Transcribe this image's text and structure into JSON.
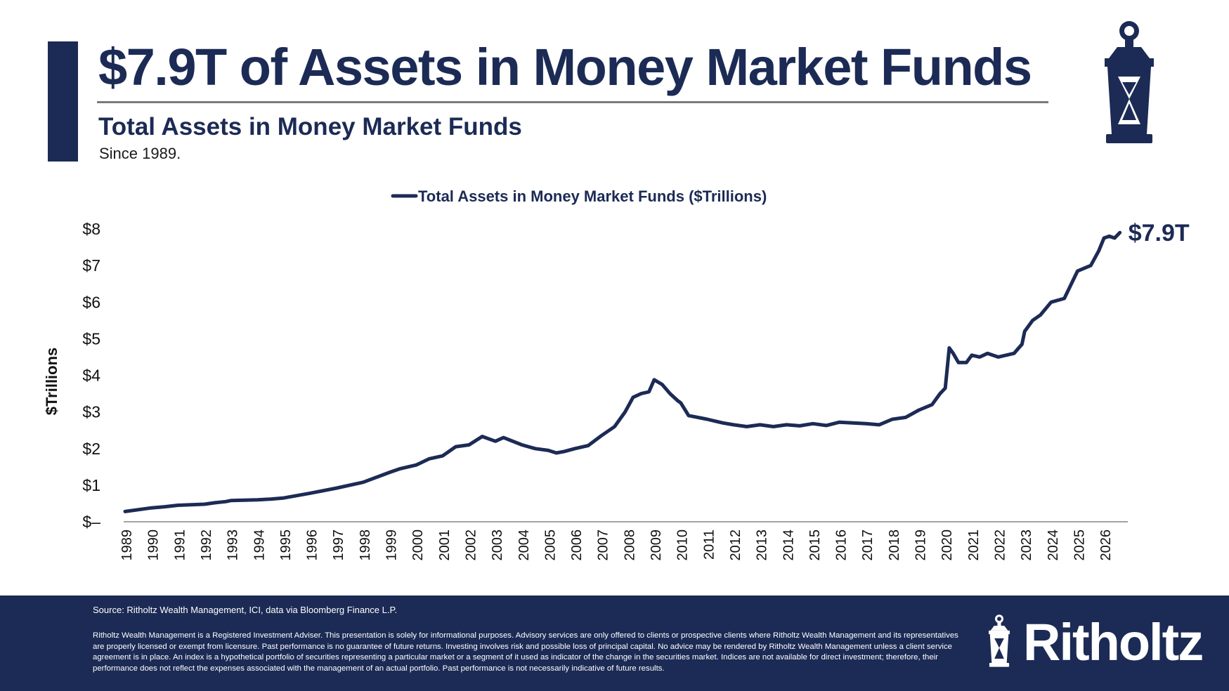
{
  "title": "$7.9T of Assets in Money Market Funds",
  "subtitle": "Total Assets in Money Market Funds",
  "since": "Since 1989.",
  "colors": {
    "navy": "#1c2b55",
    "rule": "#7a7a7a",
    "axis": "#444444"
  },
  "icons": {
    "top_right": "lantern-icon",
    "footer_logo": "lantern-icon"
  },
  "chart_data": {
    "type": "line",
    "ylabel": "$Trillions",
    "ylim": [
      0,
      8
    ],
    "yticks": [
      {
        "value": 0,
        "label": "$–"
      },
      {
        "value": 1,
        "label": "$1"
      },
      {
        "value": 2,
        "label": "$2"
      },
      {
        "value": 3,
        "label": "$3"
      },
      {
        "value": 4,
        "label": "$4"
      },
      {
        "value": 5,
        "label": "$5"
      },
      {
        "value": 6,
        "label": "$6"
      },
      {
        "value": 7,
        "label": "$7"
      },
      {
        "value": 8,
        "label": "$8"
      }
    ],
    "xlim": [
      1989,
      2026.9
    ],
    "xticks": [
      "1989",
      "1990",
      "1991",
      "1992",
      "1993",
      "1994",
      "1995",
      "1996",
      "1997",
      "1998",
      "1999",
      "2000",
      "2001",
      "2002",
      "2003",
      "2004",
      "2005",
      "2006",
      "2007",
      "2008",
      "2009",
      "2010",
      "2011",
      "2012",
      "2013",
      "2014",
      "2015",
      "2016",
      "2017",
      "2018",
      "2019",
      "2020",
      "2021",
      "2022",
      "2023",
      "2024",
      "2025",
      "2026"
    ],
    "legend_position": "top-center",
    "grid": false,
    "end_label": "$7.9T",
    "series": [
      {
        "name": "Total Assets in Money Market Funds ($Trillions)",
        "color": "#1c2b55",
        "x": [
          1989.0,
          1990.0,
          1990.5,
          1991.0,
          1992.0,
          1992.4,
          1992.8,
          1993.0,
          1994.0,
          1994.5,
          1995.0,
          1996.0,
          1997.0,
          1998.0,
          1999.0,
          1999.4,
          2000.0,
          2000.5,
          2001.0,
          2001.5,
          2002.0,
          2002.5,
          2002.8,
          2003.0,
          2003.3,
          2004.0,
          2004.5,
          2005.0,
          2005.3,
          2005.6,
          2006.0,
          2006.5,
          2007.0,
          2007.5,
          2007.9,
          2008.2,
          2008.5,
          2008.8,
          2009.0,
          2009.3,
          2009.6,
          2009.9,
          2010.0,
          2010.3,
          2011.0,
          2011.3,
          2011.6,
          2012.0,
          2012.5,
          2013.0,
          2013.5,
          2014.0,
          2014.5,
          2015.0,
          2015.5,
          2016.0,
          2016.5,
          2017.0,
          2017.5,
          2018.0,
          2018.5,
          2019.0,
          2019.5,
          2019.8,
          2020.0,
          2020.15,
          2020.3,
          2020.5,
          2020.8,
          2021.0,
          2021.3,
          2021.6,
          2022.0,
          2022.3,
          2022.6,
          2022.9,
          2023.0,
          2023.3,
          2023.6,
          2024.0,
          2024.5,
          2025.0,
          2025.5,
          2025.8,
          2026.0,
          2026.2,
          2026.4,
          2026.6
        ],
        "y": [
          0.28,
          0.38,
          0.41,
          0.45,
          0.48,
          0.52,
          0.55,
          0.58,
          0.6,
          0.62,
          0.65,
          0.78,
          0.92,
          1.08,
          1.35,
          1.45,
          1.55,
          1.72,
          1.8,
          2.05,
          2.1,
          2.33,
          2.25,
          2.2,
          2.3,
          2.1,
          2.0,
          1.95,
          1.88,
          1.92,
          2.0,
          2.08,
          2.35,
          2.6,
          3.0,
          3.4,
          3.5,
          3.55,
          3.88,
          3.75,
          3.5,
          3.3,
          3.25,
          2.9,
          2.8,
          2.75,
          2.7,
          2.65,
          2.6,
          2.65,
          2.6,
          2.65,
          2.62,
          2.68,
          2.63,
          2.72,
          2.7,
          2.68,
          2.65,
          2.8,
          2.85,
          3.05,
          3.2,
          3.5,
          3.65,
          4.75,
          4.6,
          4.35,
          4.35,
          4.55,
          4.5,
          4.6,
          4.5,
          4.55,
          4.6,
          4.85,
          5.2,
          5.5,
          5.65,
          6.0,
          6.1,
          6.85,
          7.0,
          7.4,
          7.75,
          7.8,
          7.75,
          7.9
        ]
      }
    ]
  },
  "footer": {
    "source": "Source: Ritholtz Wealth Management, ICI, data via Bloomberg Finance L.P.",
    "disclaimer": "Ritholtz Wealth Management is a Registered Investment Adviser. This presentation is solely for informational purposes. Advisory services are only offered to clients or prospective clients where Ritholtz Wealth Management and its representatives are properly licensed or exempt from licensure. Past performance is no guarantee of future returns. Investing involves risk and possible loss of principal capital. No advice may be rendered by Ritholtz Wealth Management unless a client service agreement is in place. An index is a hypothetical portfolio of securities representing a particular market or a segment of it used as indicator of the change in the securities market. Indices are not available for direct investment; therefore, their performance does not reflect the expenses associated with the management of an actual portfolio. Past performance is not necessarily indicative of future results.",
    "logo_text": "Ritholtz"
  }
}
